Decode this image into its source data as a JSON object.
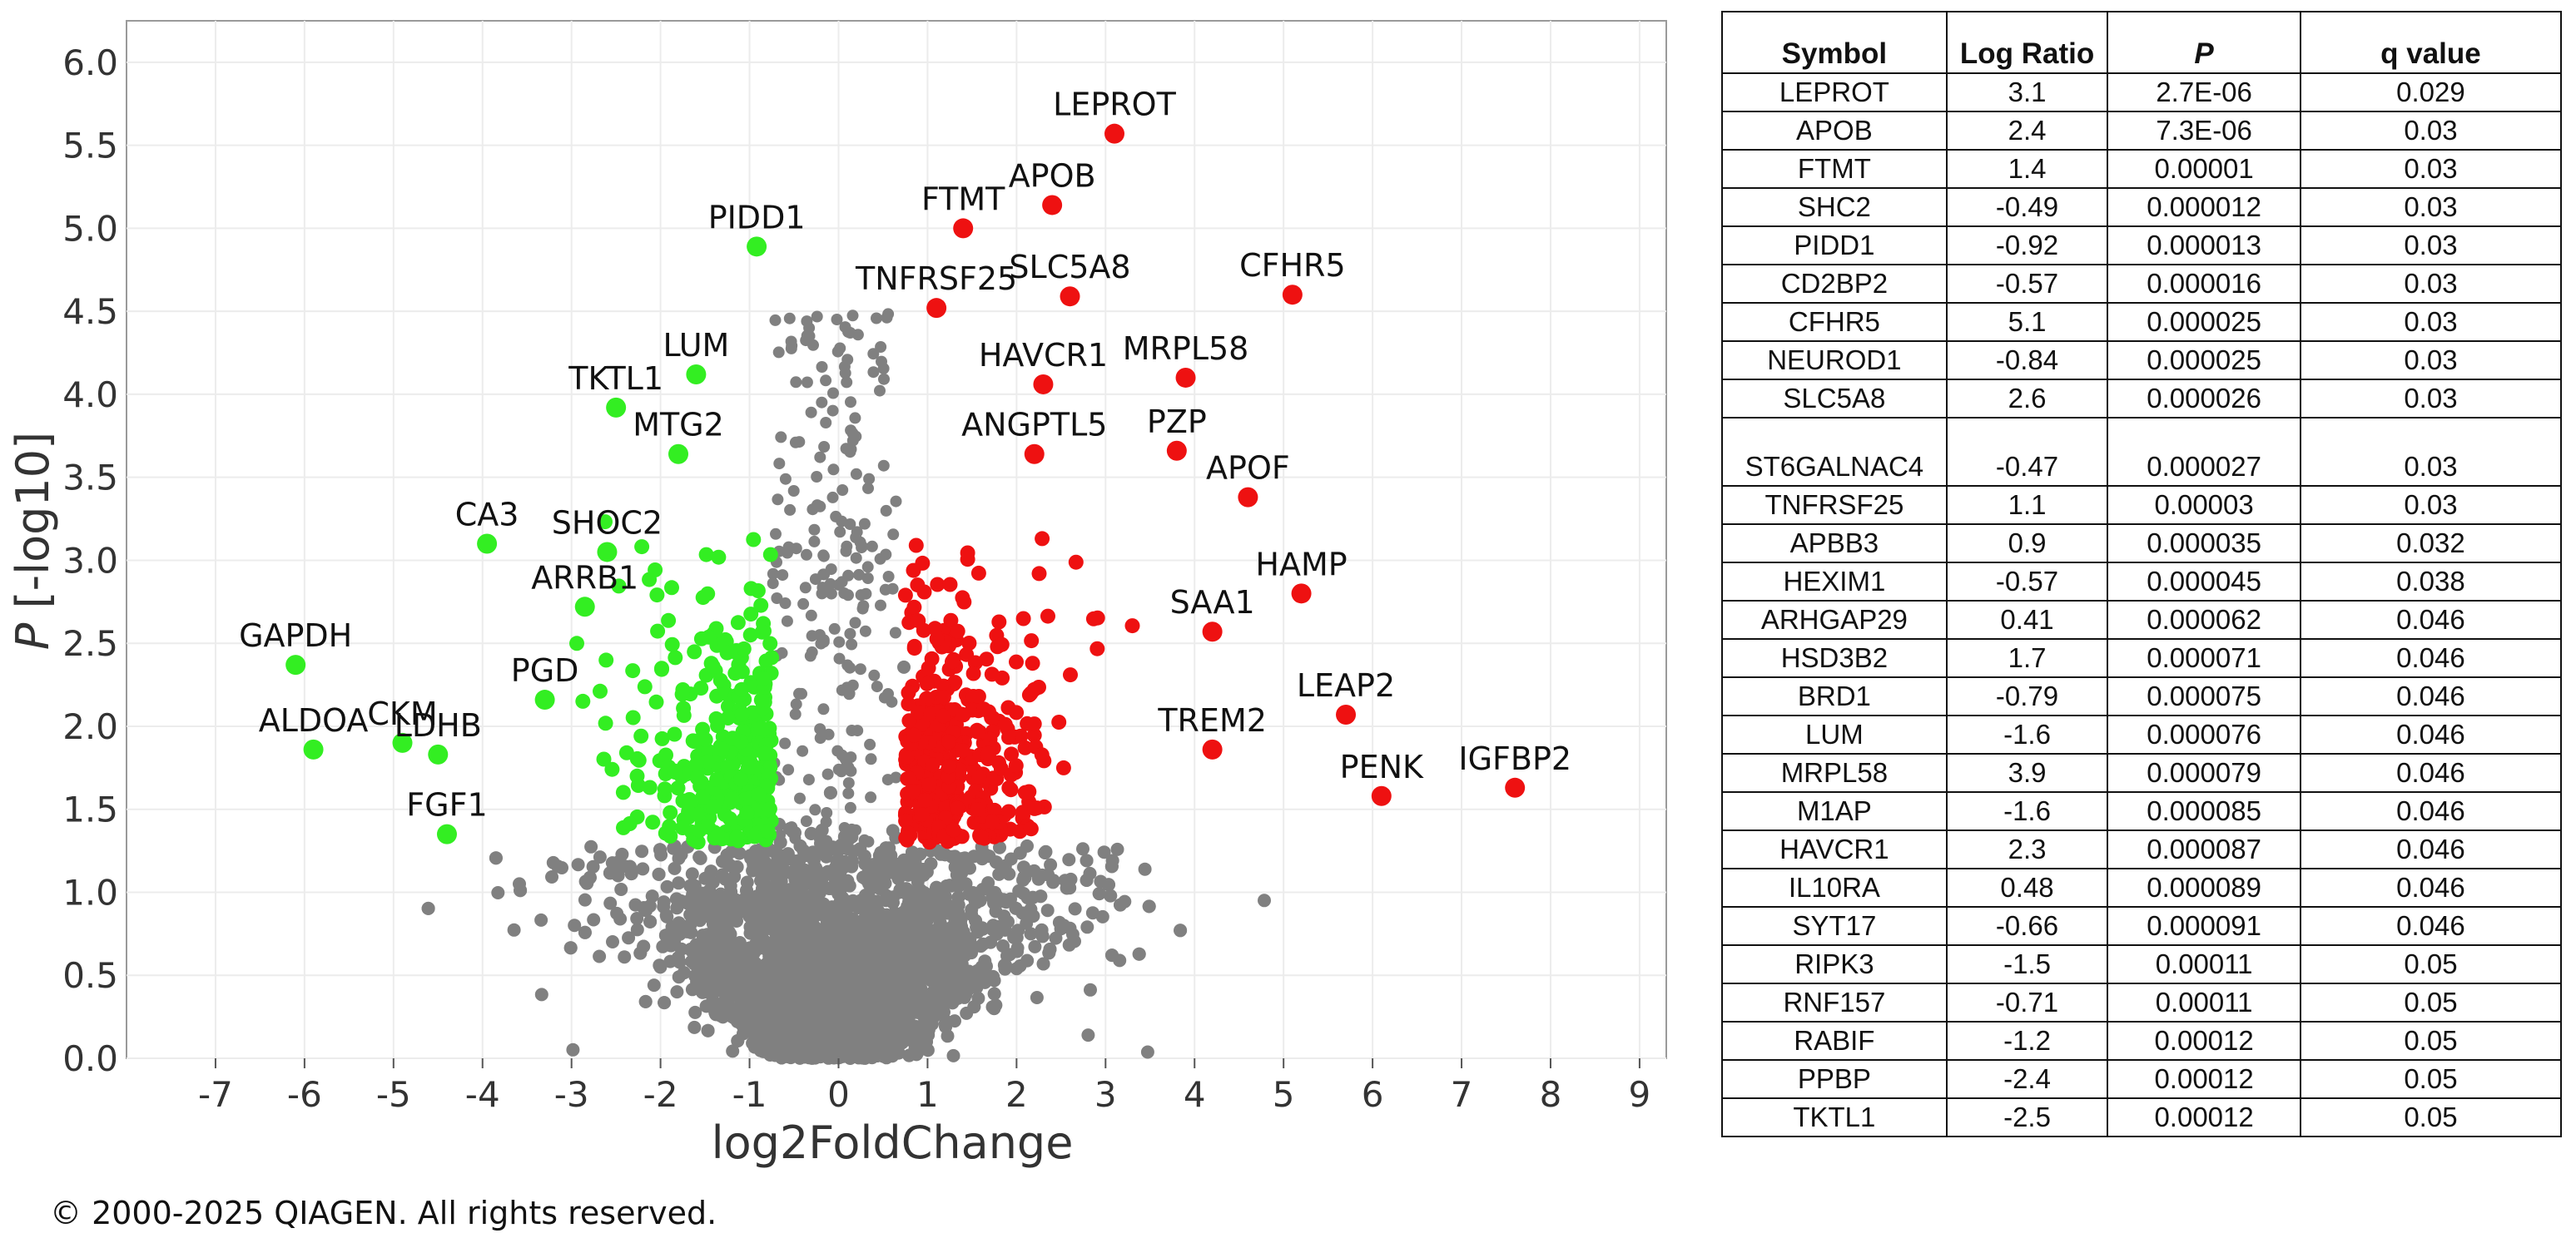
{
  "chart_data": {
    "type": "scatter",
    "title": "",
    "xlabel": "log2FoldChange",
    "ylabel_italic": "P",
    "ylabel_rest": " [-log10]",
    "xlim": [
      -8,
      9.3
    ],
    "ylim": [
      0,
      6.25
    ],
    "xticks": [
      -7,
      -6,
      -5,
      -4,
      -3,
      -2,
      -1,
      0,
      1,
      2,
      3,
      4,
      5,
      6,
      7,
      8,
      9
    ],
    "yticks": [
      0.0,
      0.5,
      1.0,
      1.5,
      2.0,
      2.5,
      3.0,
      3.5,
      4.0,
      4.5,
      5.0,
      5.5,
      6.0
    ],
    "grid": true,
    "colors": {
      "up": "#ee1111",
      "down": "#33ee22",
      "ns": "#808080"
    },
    "labeled_points": [
      {
        "label": "LEPROT",
        "x": 3.1,
        "y": 5.57,
        "group": "up"
      },
      {
        "label": "APOB",
        "x": 2.4,
        "y": 5.14,
        "group": "up"
      },
      {
        "label": "FTMT",
        "x": 1.4,
        "y": 5.0,
        "group": "up"
      },
      {
        "label": "PIDD1",
        "x": -0.92,
        "y": 4.89,
        "group": "down"
      },
      {
        "label": "TNFRSF25",
        "x": 1.1,
        "y": 4.52,
        "group": "up"
      },
      {
        "label": "SLC5A8",
        "x": 2.6,
        "y": 4.59,
        "group": "up"
      },
      {
        "label": "CFHR5",
        "x": 5.1,
        "y": 4.6,
        "group": "up"
      },
      {
        "label": "HAVCR1",
        "x": 2.3,
        "y": 4.06,
        "group": "up"
      },
      {
        "label": "MRPL58",
        "x": 3.9,
        "y": 4.1,
        "group": "up"
      },
      {
        "label": "LUM",
        "x": -1.6,
        "y": 4.12,
        "group": "down"
      },
      {
        "label": "TKTL1",
        "x": -2.5,
        "y": 3.92,
        "group": "down"
      },
      {
        "label": "MTG2",
        "x": -1.8,
        "y": 3.64,
        "group": "down"
      },
      {
        "label": "ANGPTL5",
        "x": 2.2,
        "y": 3.64,
        "group": "up"
      },
      {
        "label": "PZP",
        "x": 3.8,
        "y": 3.66,
        "group": "up"
      },
      {
        "label": "APOF",
        "x": 4.6,
        "y": 3.38,
        "group": "up"
      },
      {
        "label": "CA3",
        "x": -3.95,
        "y": 3.1,
        "group": "down"
      },
      {
        "label": "SHOC2",
        "x": -2.6,
        "y": 3.05,
        "group": "down"
      },
      {
        "label": "HAMP",
        "x": 5.2,
        "y": 2.8,
        "group": "up"
      },
      {
        "label": "ARRB1",
        "x": -2.85,
        "y": 2.72,
        "group": "down"
      },
      {
        "label": "SAA1",
        "x": 4.2,
        "y": 2.57,
        "group": "up"
      },
      {
        "label": "GAPDH",
        "x": -6.1,
        "y": 2.37,
        "group": "down"
      },
      {
        "label": "PGD",
        "x": -3.3,
        "y": 2.16,
        "group": "down"
      },
      {
        "label": "LEAP2",
        "x": 5.7,
        "y": 2.07,
        "group": "up"
      },
      {
        "label": "TREM2",
        "x": 4.2,
        "y": 1.86,
        "group": "up"
      },
      {
        "label": "ALDOA",
        "x": -5.9,
        "y": 1.86,
        "group": "down"
      },
      {
        "label": "CKM",
        "x": -4.9,
        "y": 1.9,
        "group": "down"
      },
      {
        "label": "LDHB",
        "x": -4.5,
        "y": 1.83,
        "group": "down"
      },
      {
        "label": "PENK",
        "x": 6.1,
        "y": 1.58,
        "group": "up"
      },
      {
        "label": "IGFBP2",
        "x": 7.6,
        "y": 1.63,
        "group": "up"
      },
      {
        "label": "FGF1",
        "x": -4.4,
        "y": 1.35,
        "group": "down"
      }
    ]
  },
  "table": {
    "headers": [
      "Symbol",
      "Log Ratio",
      "P",
      "q value"
    ],
    "rows": [
      [
        "LEPROT",
        "3.1",
        "2.7E-06",
        "0.029"
      ],
      [
        "APOB",
        "2.4",
        "7.3E-06",
        "0.03"
      ],
      [
        "FTMT",
        "1.4",
        "0.00001",
        "0.03"
      ],
      [
        "SHC2",
        "-0.49",
        "0.000012",
        "0.03"
      ],
      [
        "PIDD1",
        "-0.92",
        "0.000013",
        "0.03"
      ],
      [
        "CD2BP2",
        "-0.57",
        "0.000016",
        "0.03"
      ],
      [
        "CFHR5",
        "5.1",
        "0.000025",
        "0.03"
      ],
      [
        "NEUROD1",
        "-0.84",
        "0.000025",
        "0.03"
      ],
      [
        "SLC5A8",
        "2.6",
        "0.000026",
        "0.03"
      ],
      [
        "ST6GALNAC4",
        "-0.47",
        "0.000027",
        "0.03"
      ],
      [
        "TNFRSF25",
        "1.1",
        "0.00003",
        "0.03"
      ],
      [
        "APBB3",
        "0.9",
        "0.000035",
        "0.032"
      ],
      [
        "HEXIM1",
        "-0.57",
        "0.000045",
        "0.038"
      ],
      [
        "ARHGAP29",
        "0.41",
        "0.000062",
        "0.046"
      ],
      [
        "HSD3B2",
        "1.7",
        "0.000071",
        "0.046"
      ],
      [
        "BRD1",
        "-0.79",
        "0.000075",
        "0.046"
      ],
      [
        "LUM",
        "-1.6",
        "0.000076",
        "0.046"
      ],
      [
        "MRPL58",
        "3.9",
        "0.000079",
        "0.046"
      ],
      [
        "M1AP",
        "-1.6",
        "0.000085",
        "0.046"
      ],
      [
        "HAVCR1",
        "2.3",
        "0.000087",
        "0.046"
      ],
      [
        "IL10RA",
        "0.48",
        "0.000089",
        "0.046"
      ],
      [
        "SYT17",
        "-0.66",
        "0.000091",
        "0.046"
      ],
      [
        "RIPK3",
        "-1.5",
        "0.00011",
        "0.05"
      ],
      [
        "RNF157",
        "-0.71",
        "0.00011",
        "0.05"
      ],
      [
        "RABIF",
        "-1.2",
        "0.00012",
        "0.05"
      ],
      [
        "PPBP",
        "-2.4",
        "0.00012",
        "0.05"
      ],
      [
        "TKTL1",
        "-2.5",
        "0.00012",
        "0.05"
      ]
    ]
  },
  "footer": {
    "copyright": "© 2000-2025 QIAGEN. All rights reserved."
  }
}
